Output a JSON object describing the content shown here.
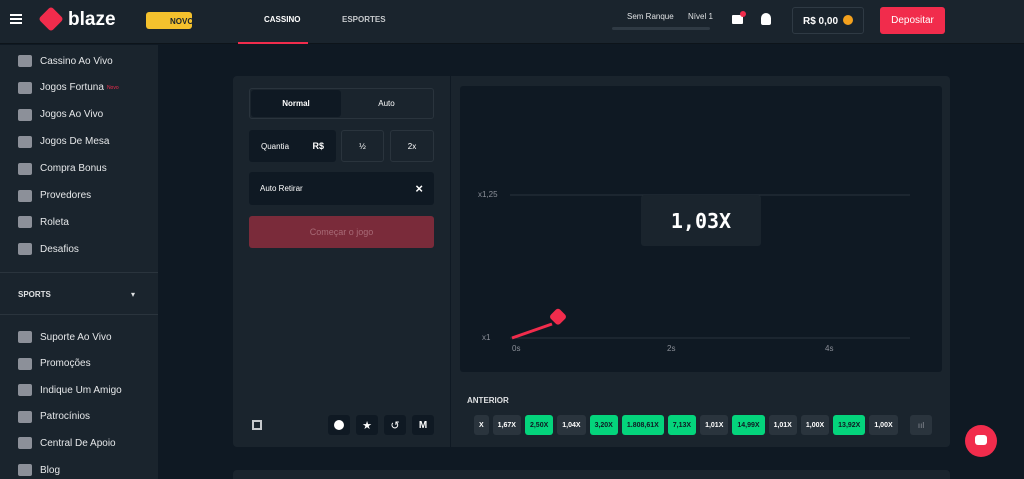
{
  "header": {
    "logo": "blaze",
    "badge": "NOVO",
    "tabs": [
      "CASSINO",
      "ESPORTES"
    ],
    "rank": "Sem Ranque",
    "level": "Nível 1",
    "balance": "R$ 0,00",
    "deposit": "Depositar"
  },
  "sidebar": {
    "main": [
      {
        "label": "Cassino Ao Vivo"
      },
      {
        "label": "Jogos Fortuna",
        "tag": "Novo"
      },
      {
        "label": "Jogos Ao Vivo"
      },
      {
        "label": "Jogos De Mesa"
      },
      {
        "label": "Compra Bonus"
      },
      {
        "label": "Provedores"
      },
      {
        "label": "Roleta"
      },
      {
        "label": "Desafios"
      }
    ],
    "section": "SPORTS",
    "extra": [
      {
        "label": "Suporte Ao Vivo"
      },
      {
        "label": "Promoções"
      },
      {
        "label": "Indique Um Amigo"
      },
      {
        "label": "Patrocínios"
      },
      {
        "label": "Central De Apoio"
      },
      {
        "label": "Blog"
      }
    ]
  },
  "controls": {
    "modes": [
      "Normal",
      "Auto"
    ],
    "amount_label": "Quantia",
    "currency": "R$",
    "half": "½",
    "double": "2x",
    "auto_cashout": "Auto Retirar",
    "clear": "×",
    "start": "Começar o jogo"
  },
  "graph": {
    "multiplier": "1,03X",
    "y_labels": [
      "x1,25",
      "x1"
    ],
    "x_labels": [
      "0s",
      "2s",
      "4s"
    ]
  },
  "history": {
    "title": "ANTERIOR",
    "items": [
      {
        "label": "X",
        "win": false
      },
      {
        "label": "1,67X",
        "win": false
      },
      {
        "label": "2,50X",
        "win": true
      },
      {
        "label": "1,04X",
        "win": false
      },
      {
        "label": "3,20X",
        "win": true
      },
      {
        "label": "1.808,61X",
        "win": true
      },
      {
        "label": "7,13X",
        "win": true
      },
      {
        "label": "1,01X",
        "win": false
      },
      {
        "label": "14,99X",
        "win": true
      },
      {
        "label": "1,01X",
        "win": false
      },
      {
        "label": "1,00X",
        "win": false
      },
      {
        "label": "13,92X",
        "win": true
      },
      {
        "label": "1,00X",
        "win": false
      }
    ]
  }
}
